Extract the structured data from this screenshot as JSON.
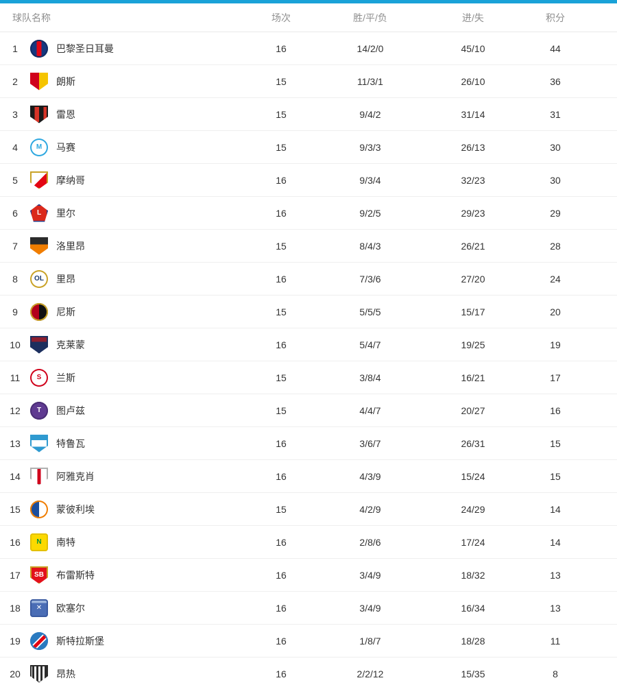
{
  "accent_color": "#19a2d8",
  "header": {
    "team": "球队名称",
    "played": "场次",
    "wdl": "胜/平/负",
    "goals": "进/失",
    "points": "积分"
  },
  "teams": [
    {
      "rank": "1",
      "name": "巴黎圣日耳曼",
      "played": "16",
      "wdl": "14/2/0",
      "goals": "45/10",
      "points": "44",
      "logo": {
        "shape": "circle",
        "bg": "linear-gradient(90deg,#17387f 36%,#e30613 36%,#e30613 64%,#17387f 64%)",
        "border": "#122d66",
        "letter": "",
        "letterColor": ""
      }
    },
    {
      "rank": "2",
      "name": "朗斯",
      "played": "15",
      "wdl": "11/3/1",
      "goals": "26/10",
      "points": "36",
      "logo": {
        "shape": "shield",
        "bg": "linear-gradient(90deg,#d0021b 50%,#f5c400 50%)",
        "border": "",
        "letter": "",
        "letterColor": ""
      }
    },
    {
      "rank": "3",
      "name": "雷恩",
      "played": "15",
      "wdl": "9/4/2",
      "goals": "31/14",
      "points": "31",
      "logo": {
        "shape": "shield",
        "bg": "linear-gradient(90deg,#1a1a1a 25%,#d63327 25%,#d63327 50%,#1a1a1a 50%,#1a1a1a 75%,#d63327 75%)",
        "border": "#1a1a1a",
        "letter": "",
        "letterColor": ""
      }
    },
    {
      "rank": "4",
      "name": "马赛",
      "played": "15",
      "wdl": "9/3/3",
      "goals": "26/13",
      "points": "30",
      "logo": {
        "shape": "circle",
        "bg": "#ffffff",
        "border": "#2fa8e0",
        "letter": "M",
        "letterColor": "#2fa8e0"
      }
    },
    {
      "rank": "5",
      "name": "摩纳哥",
      "played": "16",
      "wdl": "9/3/4",
      "goals": "32/23",
      "points": "30",
      "logo": {
        "shape": "shield",
        "bg": "linear-gradient(135deg,#ffffff 50%,#e30613 50%)",
        "border": "#c9a227",
        "letter": "",
        "letterColor": ""
      }
    },
    {
      "rank": "6",
      "name": "里尔",
      "played": "16",
      "wdl": "9/2/5",
      "goals": "29/23",
      "points": "29",
      "logo": {
        "shape": "pentagon",
        "bg": "#da291c",
        "border": "#2b3f8a",
        "letter": "L",
        "letterColor": "#ffffff"
      }
    },
    {
      "rank": "7",
      "name": "洛里昂",
      "played": "15",
      "wdl": "8/4/3",
      "goals": "26/21",
      "points": "28",
      "logo": {
        "shape": "shield",
        "bg": "linear-gradient(180deg,#2b2b2b 40%,#f07d00 40%)",
        "border": "",
        "letter": "",
        "letterColor": ""
      }
    },
    {
      "rank": "8",
      "name": "里昂",
      "played": "16",
      "wdl": "7/3/6",
      "goals": "27/20",
      "points": "24",
      "logo": {
        "shape": "circle",
        "bg": "#ffffff",
        "border": "#c9a227",
        "letter": "OL",
        "letterColor": "#1b3a6b"
      }
    },
    {
      "rank": "9",
      "name": "尼斯",
      "played": "15",
      "wdl": "5/5/5",
      "goals": "15/17",
      "points": "20",
      "logo": {
        "shape": "circle",
        "bg": "linear-gradient(90deg,#b3001b 50%,#111111 50%)",
        "border": "#c9a227",
        "letter": "",
        "letterColor": ""
      }
    },
    {
      "rank": "10",
      "name": "克莱蒙",
      "played": "16",
      "wdl": "5/4/7",
      "goals": "19/25",
      "points": "19",
      "logo": {
        "shape": "shield",
        "bg": "linear-gradient(180deg,#8c1f2f 32%,#1c2f5e 32%)",
        "border": "#1c2f5e",
        "letter": "",
        "letterColor": ""
      }
    },
    {
      "rank": "11",
      "name": "兰斯",
      "played": "15",
      "wdl": "3/8/4",
      "goals": "16/21",
      "points": "17",
      "logo": {
        "shape": "circle",
        "bg": "#ffffff",
        "border": "#d0021b",
        "letter": "S",
        "letterColor": "#d0021b"
      }
    },
    {
      "rank": "12",
      "name": "图卢兹",
      "played": "15",
      "wdl": "4/4/7",
      "goals": "20/27",
      "points": "16",
      "logo": {
        "shape": "circle",
        "bg": "#5f3a91",
        "border": "#4a2d75",
        "letter": "T",
        "letterColor": "#ffffff"
      }
    },
    {
      "rank": "13",
      "name": "特鲁瓦",
      "played": "16",
      "wdl": "3/6/7",
      "goals": "26/31",
      "points": "15",
      "logo": {
        "shape": "shield",
        "bg": "linear-gradient(180deg,#2f9ad0 30%,#ffffff 30%,#ffffff 68%,#2f9ad0 68%)",
        "border": "#2f9ad0",
        "letter": "",
        "letterColor": ""
      }
    },
    {
      "rank": "14",
      "name": "阿雅克肖",
      "played": "16",
      "wdl": "4/3/9",
      "goals": "15/24",
      "points": "15",
      "logo": {
        "shape": "shield",
        "bg": "linear-gradient(90deg,#ffffff 40%,#d0021b 40%,#d0021b 60%,#ffffff 60%)",
        "border": "#b0b0b0",
        "letter": "",
        "letterColor": ""
      }
    },
    {
      "rank": "15",
      "name": "蒙彼利埃",
      "played": "15",
      "wdl": "4/2/9",
      "goals": "24/29",
      "points": "14",
      "logo": {
        "shape": "circle",
        "bg": "linear-gradient(90deg,#1c4e9d 50%,#ffffff 50%)",
        "border": "#f07d00",
        "letter": "",
        "letterColor": ""
      }
    },
    {
      "rank": "16",
      "name": "南特",
      "played": "16",
      "wdl": "2/8/6",
      "goals": "17/24",
      "points": "14",
      "logo": {
        "shape": "square",
        "bg": "#fcd900",
        "border": "#e3c000",
        "letter": "N",
        "letterColor": "#009639"
      }
    },
    {
      "rank": "17",
      "name": "布雷斯特",
      "played": "16",
      "wdl": "3/4/9",
      "goals": "18/32",
      "points": "13",
      "logo": {
        "shape": "shield",
        "bg": "#e3101b",
        "border": "#c9a227",
        "letter": "SB",
        "letterColor": "#ffffff"
      }
    },
    {
      "rank": "18",
      "name": "欧塞尔",
      "played": "16",
      "wdl": "3/4/9",
      "goals": "16/34",
      "points": "13",
      "logo": {
        "shape": "square",
        "bg": "linear-gradient(180deg,#9db6dd 22%,#4a6db5 22%)",
        "border": "#3a5aa0",
        "letter": "✕",
        "letterColor": "#ffffff"
      }
    },
    {
      "rank": "19",
      "name": "斯特拉斯堡",
      "played": "16",
      "wdl": "1/8/7",
      "goals": "18/28",
      "points": "11",
      "logo": {
        "shape": "circle",
        "bg": "linear-gradient(135deg,#2a7ac0 42%,#ffffff 42%,#ffffff 47%,#e30613 47%,#e30613 60%,#ffffff 60%,#ffffff 65%,#2a7ac0 65%)",
        "border": "#2a7ac0",
        "letter": "",
        "letterColor": ""
      }
    },
    {
      "rank": "20",
      "name": "昂热",
      "played": "16",
      "wdl": "2/2/12",
      "goals": "15/35",
      "points": "8",
      "logo": {
        "shape": "shield",
        "bg": "repeating-linear-gradient(90deg,#ffffff 0,#ffffff 3px,#2b2b2b 3px,#2b2b2b 6px)",
        "border": "#2b2b2b",
        "letter": "",
        "letterColor": ""
      }
    }
  ]
}
